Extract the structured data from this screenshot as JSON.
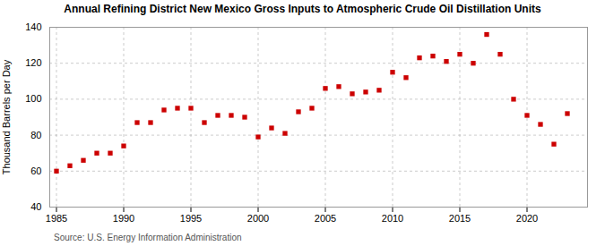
{
  "chart_data": {
    "type": "scatter",
    "title": "Annual Refining District New Mexico Gross Inputs to Atmospheric Crude Oil Distillation Units",
    "ylabel": "Thousand Barrels per Day",
    "caption": "Source: U.S. Energy Information Administration",
    "x": [
      1985,
      1986,
      1987,
      1988,
      1989,
      1990,
      1991,
      1992,
      1993,
      1994,
      1995,
      1996,
      1997,
      1998,
      1999,
      2000,
      2001,
      2002,
      2003,
      2004,
      2005,
      2006,
      2007,
      2008,
      2009,
      2010,
      2011,
      2012,
      2013,
      2014,
      2015,
      2016,
      2017,
      2018,
      2019,
      2020,
      2021,
      2022,
      2023
    ],
    "values": [
      60,
      63,
      66,
      70,
      70,
      74,
      87,
      87,
      94,
      95,
      95,
      87,
      91,
      91,
      90,
      79,
      84,
      81,
      93,
      95,
      106,
      107,
      103,
      104,
      105,
      115,
      112,
      123,
      124,
      121,
      125,
      120,
      136,
      125,
      100,
      91,
      86,
      75,
      92
    ],
    "color": "#cc0000",
    "marker": "square",
    "xlim": [
      1984.5,
      2024.5
    ],
    "ylim": [
      40,
      140
    ],
    "xticks": [
      1985,
      1990,
      1995,
      2000,
      2005,
      2010,
      2015,
      2020
    ],
    "yticks": [
      40,
      60,
      80,
      100,
      120,
      140
    ],
    "grid": true
  }
}
